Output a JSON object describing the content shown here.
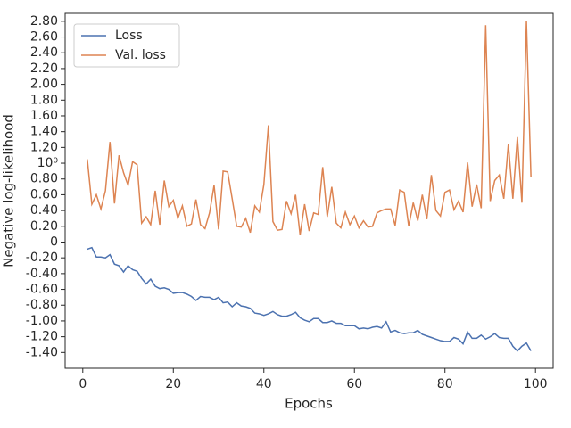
{
  "chart_data": {
    "type": "line",
    "xlabel": "Epochs",
    "ylabel": "Negative log-likelihood",
    "x": [
      1,
      2,
      3,
      4,
      5,
      6,
      7,
      8,
      9,
      10,
      11,
      12,
      13,
      14,
      15,
      16,
      17,
      18,
      19,
      20,
      21,
      22,
      23,
      24,
      25,
      26,
      27,
      28,
      29,
      30,
      31,
      32,
      33,
      34,
      35,
      36,
      37,
      38,
      39,
      40,
      41,
      42,
      43,
      44,
      45,
      46,
      47,
      48,
      49,
      50,
      51,
      52,
      53,
      54,
      55,
      56,
      57,
      58,
      59,
      60,
      61,
      62,
      63,
      64,
      65,
      66,
      67,
      68,
      69,
      70,
      71,
      72,
      73,
      74,
      75,
      76,
      77,
      78,
      79,
      80,
      81,
      82,
      83,
      84,
      85,
      86,
      87,
      88,
      89,
      90,
      91,
      92,
      93,
      94,
      95,
      96,
      97,
      98,
      99
    ],
    "series": [
      {
        "name": "Loss",
        "color": "#4c72b0",
        "values": [
          -0.09,
          -0.07,
          -0.19,
          -0.19,
          -0.2,
          -0.16,
          -0.28,
          -0.3,
          -0.38,
          -0.3,
          -0.35,
          -0.37,
          -0.46,
          -0.53,
          -0.47,
          -0.56,
          -0.59,
          -0.58,
          -0.6,
          -0.65,
          -0.64,
          -0.64,
          -0.66,
          -0.69,
          -0.74,
          -0.69,
          -0.7,
          -0.7,
          -0.73,
          -0.7,
          -0.77,
          -0.76,
          -0.82,
          -0.77,
          -0.81,
          -0.82,
          -0.84,
          -0.9,
          -0.91,
          -0.93,
          -0.91,
          -0.88,
          -0.92,
          -0.94,
          -0.94,
          -0.92,
          -0.89,
          -0.96,
          -0.99,
          -1.01,
          -0.97,
          -0.97,
          -1.02,
          -1.02,
          -1.0,
          -1.03,
          -1.03,
          -1.06,
          -1.06,
          -1.06,
          -1.1,
          -1.09,
          -1.1,
          -1.08,
          -1.07,
          -1.09,
          -1.01,
          -1.14,
          -1.12,
          -1.15,
          -1.16,
          -1.15,
          -1.15,
          -1.12,
          -1.17,
          -1.19,
          -1.21,
          -1.23,
          -1.25,
          -1.26,
          -1.26,
          -1.21,
          -1.23,
          -1.29,
          -1.14,
          -1.22,
          -1.22,
          -1.18,
          -1.23,
          -1.2,
          -1.16,
          -1.21,
          -1.22,
          -1.22,
          -1.32,
          -1.38,
          -1.32,
          -1.28,
          -1.38
        ]
      },
      {
        "name": "Val. loss",
        "color": "#dd8452",
        "values": [
          1.05,
          0.48,
          0.6,
          0.42,
          0.65,
          1.27,
          0.49,
          1.1,
          0.88,
          0.72,
          1.02,
          0.98,
          0.24,
          0.32,
          0.22,
          0.65,
          0.22,
          0.78,
          0.45,
          0.53,
          0.3,
          0.46,
          0.2,
          0.23,
          0.54,
          0.22,
          0.17,
          0.37,
          0.72,
          0.16,
          0.9,
          0.89,
          0.55,
          0.2,
          0.19,
          0.3,
          0.12,
          0.46,
          0.38,
          0.73,
          1.48,
          0.26,
          0.15,
          0.16,
          0.52,
          0.36,
          0.6,
          0.09,
          0.48,
          0.14,
          0.37,
          0.35,
          0.95,
          0.32,
          0.7,
          0.24,
          0.18,
          0.38,
          0.22,
          0.33,
          0.18,
          0.27,
          0.19,
          0.2,
          0.37,
          0.4,
          0.42,
          0.42,
          0.21,
          0.66,
          0.63,
          0.2,
          0.5,
          0.27,
          0.6,
          0.29,
          0.85,
          0.4,
          0.33,
          0.63,
          0.66,
          0.41,
          0.52,
          0.38,
          1.01,
          0.45,
          0.73,
          0.43,
          2.75,
          0.52,
          0.78,
          0.85,
          0.55,
          1.24,
          0.55,
          1.33,
          0.5,
          2.8,
          0.82
        ]
      }
    ],
    "xlim": [
      -3.9,
      103.9
    ],
    "xticks": [
      0,
      20,
      40,
      60,
      80,
      100
    ],
    "ylim": [
      -1.6,
      2.9
    ],
    "yticks": [
      {
        "value": -1.4,
        "label": "-1.40"
      },
      {
        "value": -1.2,
        "label": "-1.20"
      },
      {
        "value": -1.0,
        "label": "-1.00"
      },
      {
        "value": -0.8,
        "label": "-0.80"
      },
      {
        "value": -0.6,
        "label": "-0.60"
      },
      {
        "value": -0.4,
        "label": "-0.40"
      },
      {
        "value": -0.2,
        "label": "-0.20"
      },
      0,
      {
        "value": 0.2,
        "label": "0.20"
      },
      {
        "value": 0.4,
        "label": "0.40"
      },
      {
        "value": 0.6,
        "label": "0.60"
      },
      {
        "value": 0.8,
        "label": "0.80"
      },
      {
        "value": 1,
        "label": "10⁰"
      },
      {
        "value": 1.2,
        "label": "1.20"
      },
      {
        "value": 1.4,
        "label": "1.40"
      },
      {
        "value": 1.6,
        "label": "1.60"
      },
      {
        "value": 1.8,
        "label": "1.80"
      },
      {
        "value": 2.0,
        "label": "2.00"
      },
      {
        "value": 2.2,
        "label": "2.20"
      },
      {
        "value": 2.4,
        "label": "2.40"
      },
      {
        "value": 2.6,
        "label": "2.60"
      },
      {
        "value": 2.8,
        "label": "2.80"
      }
    ],
    "grid": false,
    "legend": "upper left"
  }
}
